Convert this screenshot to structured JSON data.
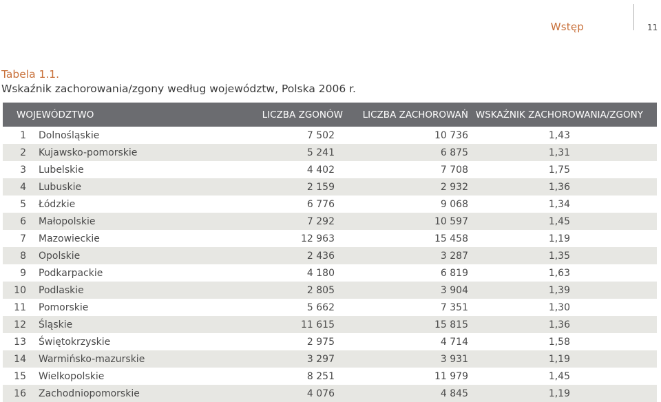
{
  "header": {
    "section": "Wstęp",
    "page_number": "11"
  },
  "caption": {
    "label": "Tabela 1.1.",
    "title": "Wskaźnik zachorowania/zgony według województw, Polska 2006 r."
  },
  "table": {
    "columns": [
      "WOJEWÓDZTWO",
      "LICZBA ZGONÓW",
      "LICZBA ZACHOROWAŃ",
      "WSKAŹNIK ZACHOROWANIA/ZGONY"
    ],
    "rows": [
      {
        "no": "1",
        "name": "Dolnośląskie",
        "deaths": "7 502",
        "cases": "10 736",
        "ratio": "1,43"
      },
      {
        "no": "2",
        "name": "Kujawsko-pomorskie",
        "deaths": "5 241",
        "cases": "6 875",
        "ratio": "1,31"
      },
      {
        "no": "3",
        "name": "Lubelskie",
        "deaths": "4 402",
        "cases": "7 708",
        "ratio": "1,75"
      },
      {
        "no": "4",
        "name": "Lubuskie",
        "deaths": "2 159",
        "cases": "2 932",
        "ratio": "1,36"
      },
      {
        "no": "5",
        "name": "Łódzkie",
        "deaths": "6 776",
        "cases": "9 068",
        "ratio": "1,34"
      },
      {
        "no": "6",
        "name": "Małopolskie",
        "deaths": "7 292",
        "cases": "10 597",
        "ratio": "1,45"
      },
      {
        "no": "7",
        "name": "Mazowieckie",
        "deaths": "12 963",
        "cases": "15 458",
        "ratio": "1,19"
      },
      {
        "no": "8",
        "name": "Opolskie",
        "deaths": "2 436",
        "cases": "3 287",
        "ratio": "1,35"
      },
      {
        "no": "9",
        "name": "Podkarpackie",
        "deaths": "4 180",
        "cases": "6 819",
        "ratio": "1,63"
      },
      {
        "no": "10",
        "name": "Podlaskie",
        "deaths": "2 805",
        "cases": "3 904",
        "ratio": "1,39"
      },
      {
        "no": "11",
        "name": "Pomorskie",
        "deaths": "5 662",
        "cases": "7 351",
        "ratio": "1,30"
      },
      {
        "no": "12",
        "name": "Śląskie",
        "deaths": "11 615",
        "cases": "15 815",
        "ratio": "1,36"
      },
      {
        "no": "13",
        "name": "Świętokrzyskie",
        "deaths": "2 975",
        "cases": "4 714",
        "ratio": "1,58"
      },
      {
        "no": "14",
        "name": "Warmińsko-mazurskie",
        "deaths": "3 297",
        "cases": "3 931",
        "ratio": "1,19"
      },
      {
        "no": "15",
        "name": "Wielkopolskie",
        "deaths": "8 251",
        "cases": "11 979",
        "ratio": "1,45"
      },
      {
        "no": "16",
        "name": "Zachodniopomorskie",
        "deaths": "4 076",
        "cases": "4 845",
        "ratio": "1,19"
      }
    ]
  },
  "colors": {
    "accent": "#c8703a",
    "header_bg": "#6b6c70",
    "stripe": "#e7e7e3"
  }
}
